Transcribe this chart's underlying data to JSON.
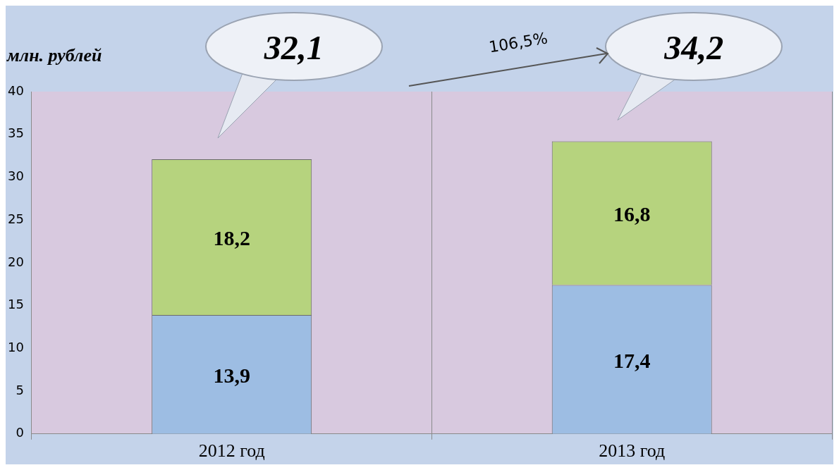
{
  "chart_data": {
    "type": "bar",
    "stacked": true,
    "ylabel": "млн. рублей",
    "categories": [
      "2012 год",
      "2013 год"
    ],
    "series": [
      {
        "color": "#9dbde3",
        "values": [
          13.9,
          17.4
        ],
        "value_labels": [
          "13,9",
          "17,4"
        ]
      },
      {
        "color": "#b6d37e",
        "values": [
          18.2,
          16.8
        ],
        "value_labels": [
          "18,2",
          "16,8"
        ]
      }
    ],
    "totals": [
      "32,1",
      "34,2"
    ],
    "annotations": [
      "106,5%"
    ],
    "ylim": [
      0,
      40
    ],
    "yticks": [
      0,
      5,
      10,
      15,
      20,
      25,
      30,
      35,
      40
    ],
    "grid": "x",
    "legend": false
  }
}
